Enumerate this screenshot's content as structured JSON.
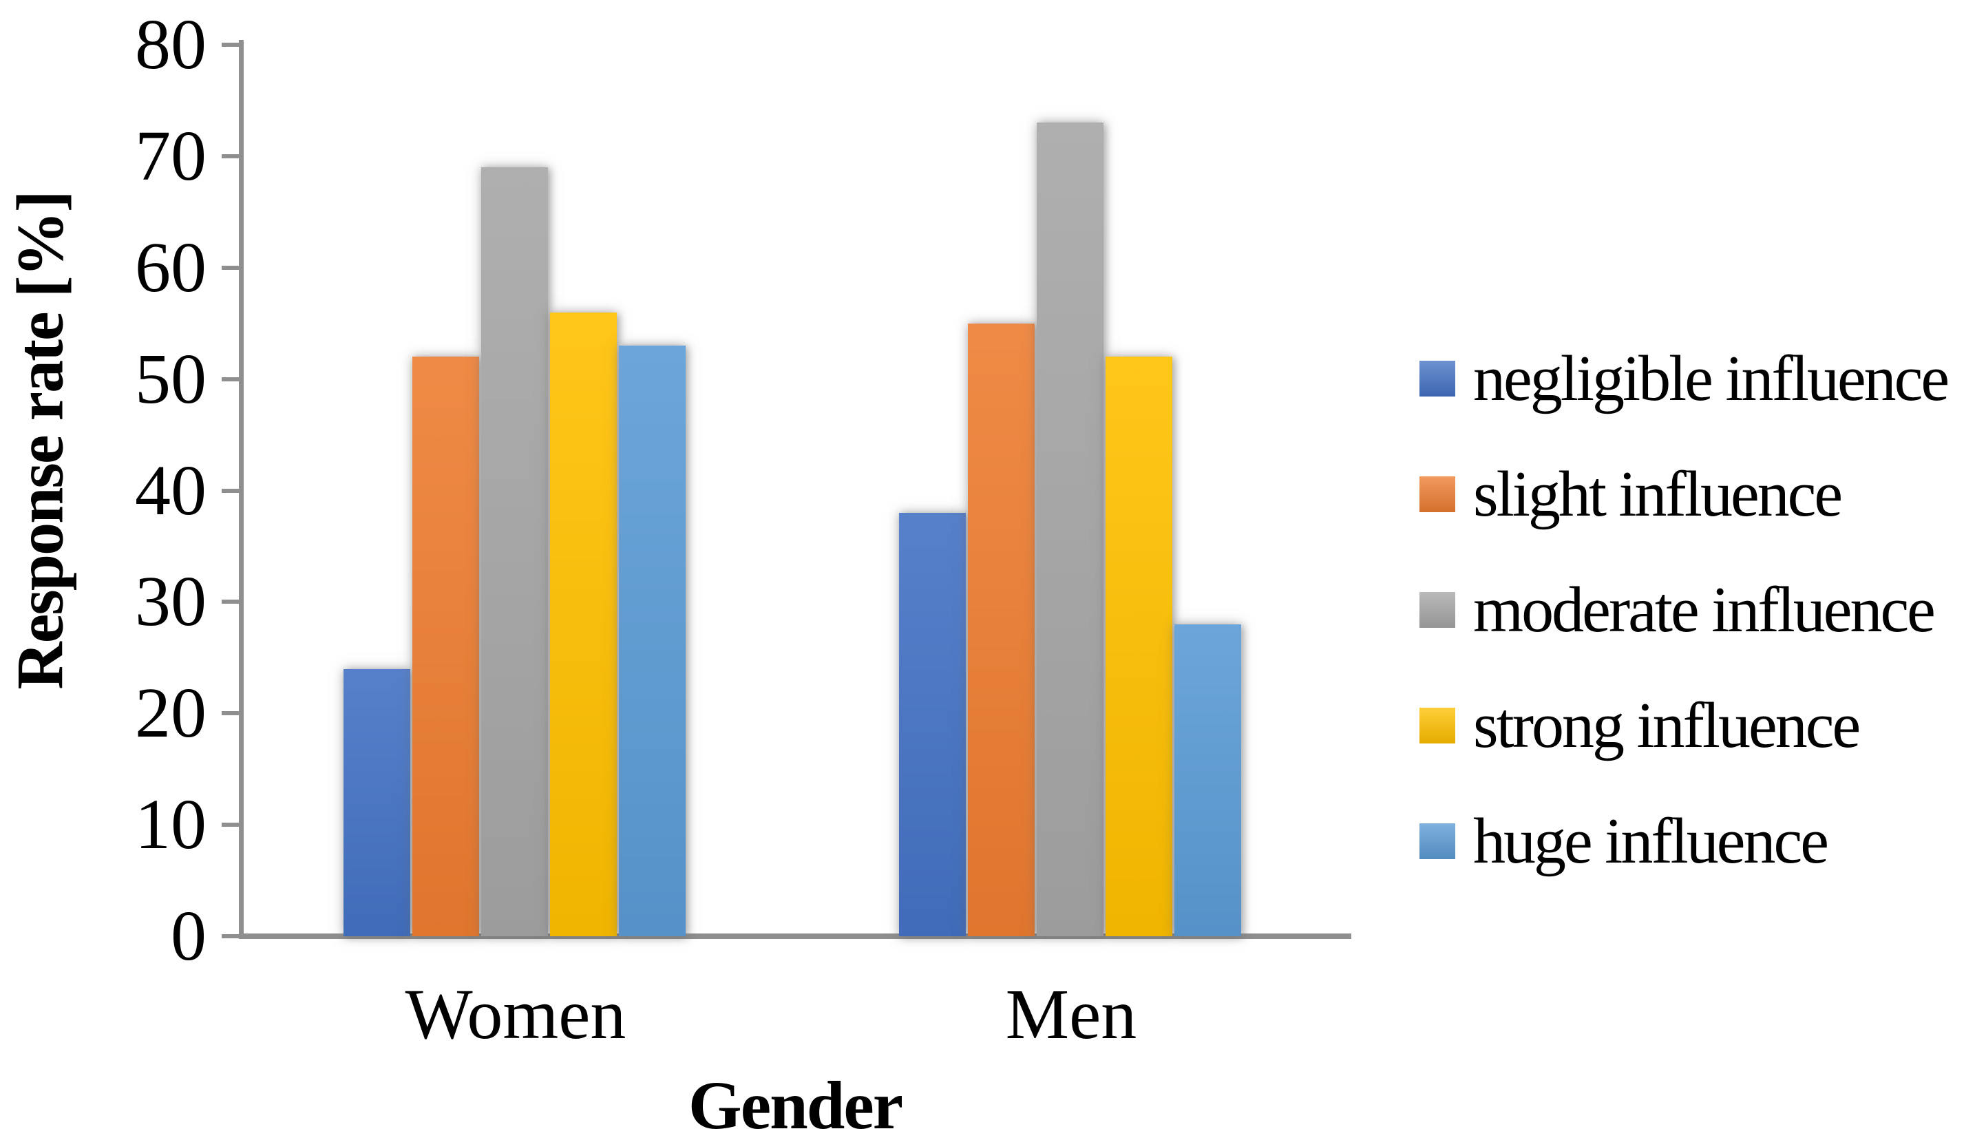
{
  "chart_data": {
    "type": "bar",
    "categories": [
      "Women",
      "Men"
    ],
    "series": [
      {
        "name": "negligible influence",
        "color": "#4472C4",
        "values": [
          24,
          38
        ]
      },
      {
        "name": "slight influence",
        "color": "#ED7D31",
        "values": [
          52,
          55
        ]
      },
      {
        "name": "moderate influence",
        "color": "#A6A6A6",
        "values": [
          69,
          73
        ]
      },
      {
        "name": "strong influence",
        "color": "#FFC000",
        "values": [
          56,
          52
        ]
      },
      {
        "name": "huge influence",
        "color": "#5B9BD5",
        "values": [
          53,
          28
        ]
      }
    ],
    "xlabel": "Gender",
    "ylabel": "Response rate [%]",
    "ylim": [
      0,
      80
    ],
    "yticks": [
      0,
      10,
      20,
      30,
      40,
      50,
      60,
      70,
      80
    ],
    "grid": false,
    "legend_position": "right",
    "axis_color": "#8f8f8f"
  }
}
